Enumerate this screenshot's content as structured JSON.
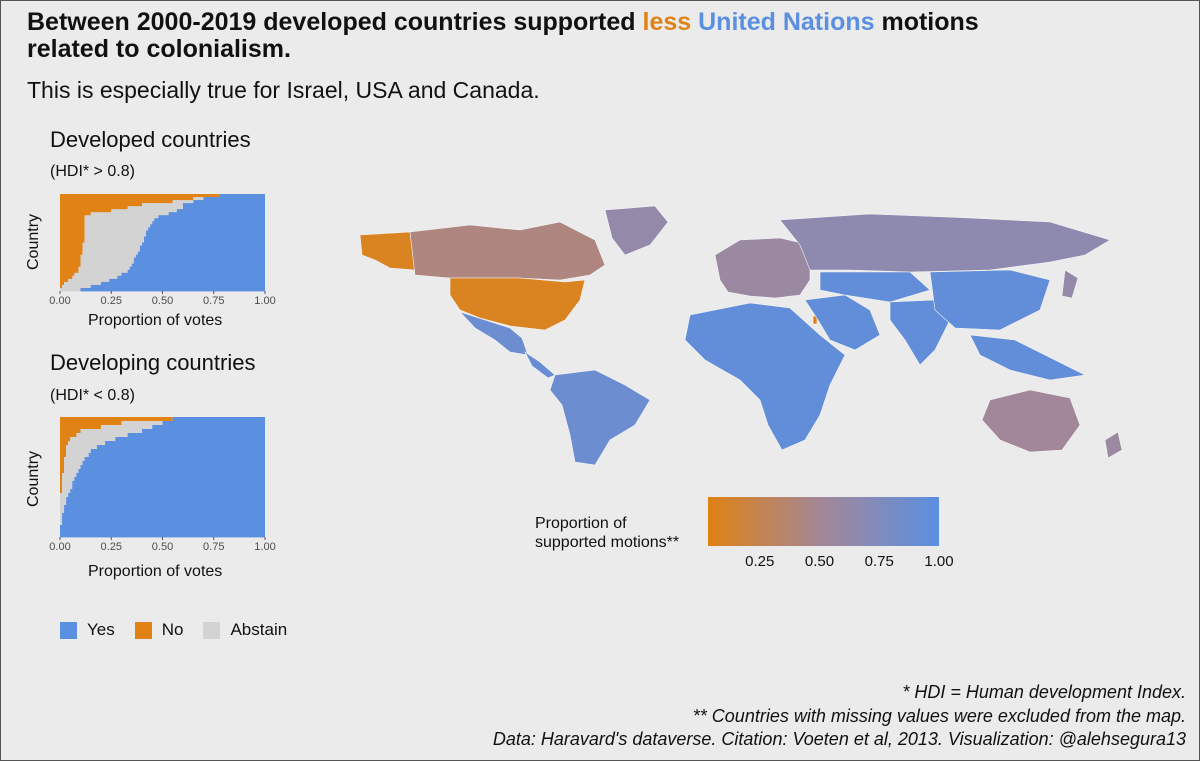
{
  "title": {
    "part1": "Between 2000-2019 developed countries supported",
    "less": "less",
    "un": "United Nations",
    "part2": "motions",
    "line2": "related to colonialism."
  },
  "subtitle": "This is especially true for Israel, USA and Canada.",
  "colors": {
    "yes": "#5b8fe0",
    "no": "#e08214",
    "abstain": "#d3d3d3",
    "background": "#ebebeb"
  },
  "chart_data": [
    {
      "type": "bar",
      "subtype": "stacked horizontal proportion",
      "title": "Developed countries",
      "subtitle": "(HDI* > 0.8)",
      "xlabel": "Proportion of votes",
      "ylabel": "Country",
      "xlim": [
        0,
        1
      ],
      "xticks": [
        "0.00",
        "0.25",
        "0.50",
        "0.75",
        "1.00"
      ],
      "series_order": [
        "no",
        "abstain",
        "yes"
      ],
      "rows": [
        {
          "no": 0.78,
          "abstain": 0.0
        },
        {
          "no": 0.65,
          "abstain": 0.05
        },
        {
          "no": 0.55,
          "abstain": 0.1
        },
        {
          "no": 0.4,
          "abstain": 0.2
        },
        {
          "no": 0.33,
          "abstain": 0.27
        },
        {
          "no": 0.25,
          "abstain": 0.32
        },
        {
          "no": 0.15,
          "abstain": 0.38
        },
        {
          "no": 0.12,
          "abstain": 0.36
        },
        {
          "no": 0.12,
          "abstain": 0.34
        },
        {
          "no": 0.12,
          "abstain": 0.33
        },
        {
          "no": 0.12,
          "abstain": 0.32
        },
        {
          "no": 0.12,
          "abstain": 0.31
        },
        {
          "no": 0.12,
          "abstain": 0.3
        },
        {
          "no": 0.12,
          "abstain": 0.3
        },
        {
          "no": 0.12,
          "abstain": 0.29
        },
        {
          "no": 0.12,
          "abstain": 0.29
        },
        {
          "no": 0.11,
          "abstain": 0.29
        },
        {
          "no": 0.11,
          "abstain": 0.28
        },
        {
          "no": 0.11,
          "abstain": 0.28
        },
        {
          "no": 0.11,
          "abstain": 0.27
        },
        {
          "no": 0.1,
          "abstain": 0.27
        },
        {
          "no": 0.1,
          "abstain": 0.26
        },
        {
          "no": 0.1,
          "abstain": 0.26
        },
        {
          "no": 0.1,
          "abstain": 0.25
        },
        {
          "no": 0.09,
          "abstain": 0.25
        },
        {
          "no": 0.09,
          "abstain": 0.24
        },
        {
          "no": 0.07,
          "abstain": 0.23
        },
        {
          "no": 0.06,
          "abstain": 0.22
        },
        {
          "no": 0.04,
          "abstain": 0.2
        },
        {
          "no": 0.02,
          "abstain": 0.18
        },
        {
          "no": 0.01,
          "abstain": 0.14
        },
        {
          "no": 0.0,
          "abstain": 0.1
        }
      ]
    },
    {
      "type": "bar",
      "subtype": "stacked horizontal proportion",
      "title": "Developing countries",
      "subtitle": "(HDI* < 0.8)",
      "xlabel": "Proportion of votes",
      "ylabel": "Country",
      "xlim": [
        0,
        1
      ],
      "xticks": [
        "0.00",
        "0.25",
        "0.50",
        "0.75",
        "1.00"
      ],
      "series_order": [
        "no",
        "abstain",
        "yes"
      ],
      "rows": [
        {
          "no": 0.55,
          "abstain": 0.0
        },
        {
          "no": 0.3,
          "abstain": 0.2
        },
        {
          "no": 0.2,
          "abstain": 0.25
        },
        {
          "no": 0.1,
          "abstain": 0.3
        },
        {
          "no": 0.08,
          "abstain": 0.25
        },
        {
          "no": 0.05,
          "abstain": 0.22
        },
        {
          "no": 0.04,
          "abstain": 0.18
        },
        {
          "no": 0.03,
          "abstain": 0.15
        },
        {
          "no": 0.03,
          "abstain": 0.12
        },
        {
          "no": 0.03,
          "abstain": 0.11
        },
        {
          "no": 0.02,
          "abstain": 0.1
        },
        {
          "no": 0.02,
          "abstain": 0.09
        },
        {
          "no": 0.02,
          "abstain": 0.08
        },
        {
          "no": 0.02,
          "abstain": 0.07
        },
        {
          "no": 0.01,
          "abstain": 0.07
        },
        {
          "no": 0.01,
          "abstain": 0.06
        },
        {
          "no": 0.01,
          "abstain": 0.05
        },
        {
          "no": 0.01,
          "abstain": 0.05
        },
        {
          "no": 0.01,
          "abstain": 0.04
        },
        {
          "no": 0.0,
          "abstain": 0.04
        },
        {
          "no": 0.0,
          "abstain": 0.03
        },
        {
          "no": 0.0,
          "abstain": 0.03
        },
        {
          "no": 0.0,
          "abstain": 0.02
        },
        {
          "no": 0.0,
          "abstain": 0.02
        },
        {
          "no": 0.0,
          "abstain": 0.01
        },
        {
          "no": 0.0,
          "abstain": 0.01
        },
        {
          "no": 0.0,
          "abstain": 0.01
        },
        {
          "no": 0.0,
          "abstain": 0.0
        },
        {
          "no": 0.0,
          "abstain": 0.0
        },
        {
          "no": 0.0,
          "abstain": 0.0
        }
      ]
    },
    {
      "type": "heatmap",
      "subtype": "choropleth world map",
      "legend_title": "Proportion of\nsupported motions**",
      "legend_ticks": [
        0.25,
        0.5,
        0.75,
        1.0
      ],
      "legend_tick_labels": [
        "0.25",
        "0.50",
        "0.75",
        "1.00"
      ],
      "color_low": "#e08214",
      "color_high": "#5b8fe0",
      "regions": [
        {
          "name": "Alaska (USA)",
          "value": 0.05
        },
        {
          "name": "Canada",
          "value": 0.4
        },
        {
          "name": "USA",
          "value": 0.05
        },
        {
          "name": "Mexico",
          "value": 0.88
        },
        {
          "name": "Central America",
          "value": 0.9
        },
        {
          "name": "Greenland",
          "value": 0.6
        },
        {
          "name": "South America",
          "value": 0.88
        },
        {
          "name": "Israel",
          "value": 0.02
        },
        {
          "name": "Europe",
          "value": 0.55
        },
        {
          "name": "Russia",
          "value": 0.65
        },
        {
          "name": "Africa",
          "value": 0.95
        },
        {
          "name": "Middle East",
          "value": 0.95
        },
        {
          "name": "Central Asia",
          "value": 0.95
        },
        {
          "name": "India",
          "value": 0.95
        },
        {
          "name": "China",
          "value": 0.95
        },
        {
          "name": "Southeast Asia",
          "value": 0.95
        },
        {
          "name": "Japan",
          "value": 0.6
        },
        {
          "name": "Australia",
          "value": 0.5
        },
        {
          "name": "New Zealand",
          "value": 0.55
        }
      ]
    }
  ],
  "legend": {
    "yes": "Yes",
    "no": "No",
    "abstain": "Abstain"
  },
  "footer": {
    "line1": "* HDI = Human development Index.",
    "line2": "** Countries with missing values were excluded from the map.",
    "line3": "Data: Haravard's dataverse. Citation: Voeten et al, 2013. Visualization: @alehsegura13"
  }
}
